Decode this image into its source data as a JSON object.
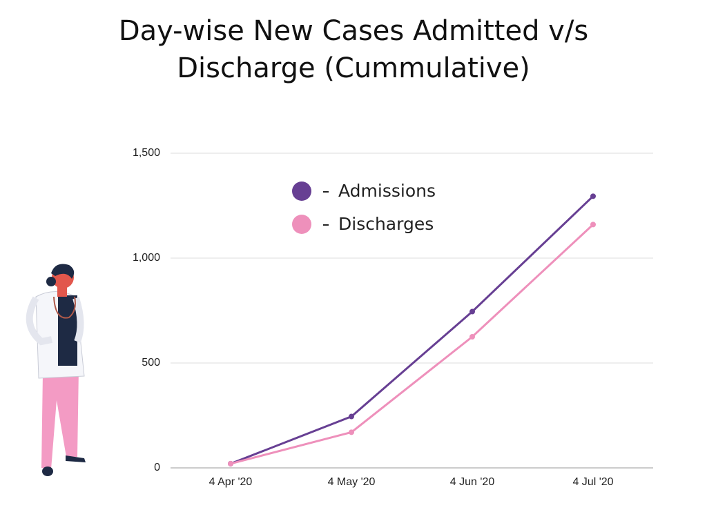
{
  "chart_data": {
    "type": "line",
    "title": "Day-wise New Cases Admitted v/s Discharge (Cummulative)",
    "categories": [
      "4 Apr '20",
      "4 May '20",
      "4 Jun '20",
      "4 Jul '20"
    ],
    "series": [
      {
        "name": "Admissions",
        "color": "#673f93",
        "values": [
          20,
          245,
          745,
          1295
        ]
      },
      {
        "name": "Discharges",
        "color": "#ee90bb",
        "values": [
          20,
          170,
          625,
          1160
        ]
      }
    ],
    "ylim": [
      0,
      1500
    ],
    "yticks": [
      0,
      500,
      {
        "value": 1000,
        "label": "1,000"
      },
      {
        "value": 1500,
        "label": "1,500"
      }
    ],
    "grid": true,
    "legend": "top-left"
  }
}
